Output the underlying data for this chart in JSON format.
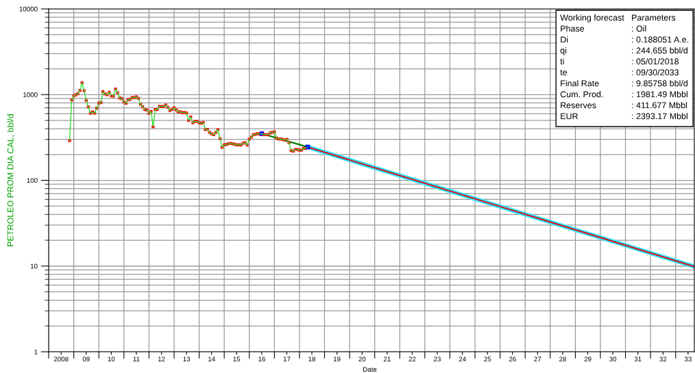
{
  "chart_data": {
    "type": "line",
    "xlabel": "Date",
    "ylabel": "PETROLEO PROM DIA CAL, bbl/d",
    "log": "y",
    "grid": true,
    "xlim": [
      "2008-01-01",
      "2033-09-30"
    ],
    "xticks": [
      {
        "value": "2008-01-01",
        "label": null
      },
      {
        "value": "2008-07-01",
        "label": "2008"
      },
      {
        "value": "2009-01-01",
        "label": null
      },
      {
        "value": "2009-07-01",
        "label": "09"
      },
      {
        "value": "2010-01-01",
        "label": null
      },
      {
        "value": "2010-07-01",
        "label": "10"
      },
      {
        "value": "2011-01-01",
        "label": null
      },
      {
        "value": "2011-07-01",
        "label": "11"
      },
      {
        "value": "2012-01-01",
        "label": null
      },
      {
        "value": "2012-07-01",
        "label": "12"
      },
      {
        "value": "2013-01-01",
        "label": null
      },
      {
        "value": "2013-07-01",
        "label": "13"
      },
      {
        "value": "2014-01-01",
        "label": null
      },
      {
        "value": "2014-07-01",
        "label": "14"
      },
      {
        "value": "2015-01-01",
        "label": null
      },
      {
        "value": "2015-07-01",
        "label": "15"
      },
      {
        "value": "2016-01-01",
        "label": null
      },
      {
        "value": "2016-07-01",
        "label": "16"
      },
      {
        "value": "2017-01-01",
        "label": null
      },
      {
        "value": "2017-07-01",
        "label": "17"
      },
      {
        "value": "2018-01-01",
        "label": null
      },
      {
        "value": "2018-07-01",
        "label": "18"
      },
      {
        "value": "2019-01-01",
        "label": null
      },
      {
        "value": "2019-07-01",
        "label": "19"
      },
      {
        "value": "2020-01-01",
        "label": null
      },
      {
        "value": "2020-07-01",
        "label": "20"
      },
      {
        "value": "2021-01-01",
        "label": null
      },
      {
        "value": "2021-07-01",
        "label": "21"
      },
      {
        "value": "2022-01-01",
        "label": null
      },
      {
        "value": "2022-07-01",
        "label": "22"
      },
      {
        "value": "2023-01-01",
        "label": null
      },
      {
        "value": "2023-07-01",
        "label": "23"
      },
      {
        "value": "2024-01-01",
        "label": null
      },
      {
        "value": "2024-07-01",
        "label": "24"
      },
      {
        "value": "2025-01-01",
        "label": null
      },
      {
        "value": "2025-07-01",
        "label": "25"
      },
      {
        "value": "2026-01-01",
        "label": null
      },
      {
        "value": "2026-07-01",
        "label": "26"
      },
      {
        "value": "2027-01-01",
        "label": null
      },
      {
        "value": "2027-07-01",
        "label": "27"
      },
      {
        "value": "2028-01-01",
        "label": null
      },
      {
        "value": "2028-07-01",
        "label": "28"
      },
      {
        "value": "2029-01-01",
        "label": null
      },
      {
        "value": "2029-07-01",
        "label": "29"
      },
      {
        "value": "2030-01-01",
        "label": null
      },
      {
        "value": "2030-07-01",
        "label": "30"
      },
      {
        "value": "2031-01-01",
        "label": null
      },
      {
        "value": "2031-07-01",
        "label": "31"
      },
      {
        "value": "2032-01-01",
        "label": null
      },
      {
        "value": "2032-07-01",
        "label": "32"
      },
      {
        "value": "2033-01-01",
        "label": null
      },
      {
        "value": "2033-07-01",
        "label": "33"
      }
    ],
    "ylim": [
      1,
      10000
    ],
    "yticks": [
      1,
      10,
      100,
      1000,
      10000
    ],
    "annotations": [
      "Working forecast",
      "Parameters",
      "Phase",
      ": Oil",
      "Di",
      ": 0.188051 A.e.",
      "qi",
      ": 244.655 bbl/d",
      "ti",
      ": 05/01/2018",
      "te",
      ": 09/30/2033",
      "Final Rate",
      ": 9.85758 bbl/d",
      "Cum. Prod.",
      ": 1981.49 Mbbl",
      "Reserves",
      ": 411.677 Mbbl",
      "EUR",
      ": 2393.17 Mbbl"
    ],
    "series": [
      {
        "color": "#33e0ff",
        "x": [
          "2018-05-01",
          "2033-09-30"
        ],
        "values": [
          244.655,
          9.85758
        ]
      },
      {
        "color": "#007a00",
        "x": [
          "2016-07",
          "2018-05"
        ],
        "values": [
          351,
          245
        ]
      },
      {
        "color": "#e00000",
        "x": [
          "2018-05-01",
          "2033-09-30"
        ],
        "values": [
          244.655,
          9.85758
        ]
      },
      {
        "color": "#33dd33",
        "marker": "square",
        "x": [
          "2008-11",
          "2008-12",
          "2009-01",
          "2009-02",
          "2009-03",
          "2009-04",
          "2009-05",
          "2009-06",
          "2009-07",
          "2009-08",
          "2009-09",
          "2009-10",
          "2009-11",
          "2009-12",
          "2010-01",
          "2010-02",
          "2010-03",
          "2010-04",
          "2010-05",
          "2010-06",
          "2010-07",
          "2010-08",
          "2010-09",
          "2010-10",
          "2010-11",
          "2010-12",
          "2011-01",
          "2011-02",
          "2011-03",
          "2011-04",
          "2011-05",
          "2011-06",
          "2011-07",
          "2011-08",
          "2011-09",
          "2011-10",
          "2011-11",
          "2011-12",
          "2012-01",
          "2012-02",
          "2012-03",
          "2012-04",
          "2012-05",
          "2012-06",
          "2012-07",
          "2012-08",
          "2012-09",
          "2012-10",
          "2012-11",
          "2012-12",
          "2013-01",
          "2013-02",
          "2013-03",
          "2013-04",
          "2013-05",
          "2013-06",
          "2013-07",
          "2013-08",
          "2013-09",
          "2013-10",
          "2013-11",
          "2013-12",
          "2014-01",
          "2014-02",
          "2014-03",
          "2014-04",
          "2014-05",
          "2014-06",
          "2014-07",
          "2014-08",
          "2014-09",
          "2014-10",
          "2014-11",
          "2014-12",
          "2015-01",
          "2015-02",
          "2015-03",
          "2015-04",
          "2015-05",
          "2015-06",
          "2015-07",
          "2015-08",
          "2015-09",
          "2015-10",
          "2015-11",
          "2015-12",
          "2016-01",
          "2016-02",
          "2016-03",
          "2016-04",
          "2016-05",
          "2016-06",
          "2016-07",
          "2016-08",
          "2016-09",
          "2016-10",
          "2016-11",
          "2016-12",
          "2017-01",
          "2017-02",
          "2017-03",
          "2017-04",
          "2017-05",
          "2017-06",
          "2017-07",
          "2017-08",
          "2017-09",
          "2017-10",
          "2017-11",
          "2017-12",
          "2018-01",
          "2018-02",
          "2018-03",
          "2018-04",
          "2018-05"
        ],
        "values": [
          291,
          865,
          966,
          995,
          1026,
          1119,
          1377,
          1112,
          855,
          720,
          607,
          629,
          607,
          694,
          794,
          809,
          1084,
          1020,
          995,
          1065,
          966,
          960,
          1161,
          1052,
          914,
          897,
          824,
          794,
          871,
          887,
          925,
          925,
          942,
          903,
          770,
          720,
          669,
          660,
          607,
          637,
          422,
          669,
          669,
          728,
          724,
          728,
          756,
          711,
          653,
          673,
          702,
          665,
          629,
          629,
          618,
          618,
          610,
          499,
          549,
          469,
          487,
          487,
          469,
          463,
          472,
          393,
          393,
          363,
          349,
          341,
          363,
          390,
          307,
          243,
          259,
          262,
          267,
          270,
          267,
          264,
          259,
          259,
          259,
          270,
          275,
          259,
          302,
          320,
          341,
          345,
          351,
          345,
          351,
          341,
          341,
          341,
          356,
          363,
          367,
          311,
          303,
          304,
          300,
          295,
          300,
          275,
          222,
          219,
          229,
          229,
          225,
          225,
          236,
          236,
          245
        ],
        "colors": [
          "#ff0000",
          "#ff0000",
          "#ff0000",
          "#ff0000",
          "#ff0000",
          "#ff0000",
          "#ff0000",
          "#ff0000",
          "#ff0000",
          "#ff0000",
          "#ff0000",
          "#ff0000",
          "#ff0000",
          "#ff0000",
          "#ff0000",
          "#ff0000",
          "#ff0000",
          "#ff0000",
          "#ff0000",
          "#ff0000",
          "#ff0000",
          "#ff0000",
          "#ff0000",
          "#ff0000",
          "#ff0000",
          "#ff0000",
          "#ff0000",
          "#ff0000",
          "#ff0000",
          "#ff0000",
          "#ff0000",
          "#ff0000",
          "#ff0000",
          "#ff0000",
          "#ff0000",
          "#ff0000",
          "#ff0000",
          "#ff0000",
          "#ff0000",
          "#ff0000",
          "#ff0000",
          "#ff0000",
          "#ff0000",
          "#ff0000",
          "#ff0000",
          "#ff0000",
          "#ff0000",
          "#ff0000",
          "#ff0000",
          "#ff0000",
          "#ff0000",
          "#ff0000",
          "#ff0000",
          "#ff0000",
          "#ff0000",
          "#ff0000",
          "#ff0000",
          "#ff0000",
          "#ff0000",
          "#ff0000",
          "#ff0000",
          "#ff0000",
          "#ff0000",
          "#ff0000",
          "#ff0000",
          "#ff0000",
          "#ff0000",
          "#ff0000",
          "#ff0000",
          "#ff0000",
          "#ff0000",
          "#ff0000",
          "#ff0000",
          "#ff0000",
          "#ff0000",
          "#ff0000",
          "#ff0000",
          "#ff0000",
          "#ff0000",
          "#ff0000",
          "#ff0000",
          "#ff0000",
          "#ff0000",
          "#ff0000",
          "#ff0000",
          "#ff0000",
          "#ff0000",
          "#ff0000",
          "#ff0000",
          "#ff0000",
          "#ff0000",
          "#ff0000",
          "#0000ff",
          "#ff0000",
          "#ff0000",
          "#ff0000",
          "#ff0000",
          "#ff0000",
          "#ff0000",
          "#ff0000",
          "#ff0000",
          "#ff0000",
          "#ff0000",
          "#ff0000",
          "#ff0000",
          "#ff0000",
          "#ff0000",
          "#ff0000",
          "#ff0000",
          "#ff0000",
          "#ff0000",
          "#ff0000",
          "#ff0000",
          "#ff0000",
          "#0000ff"
        ]
      }
    ]
  }
}
